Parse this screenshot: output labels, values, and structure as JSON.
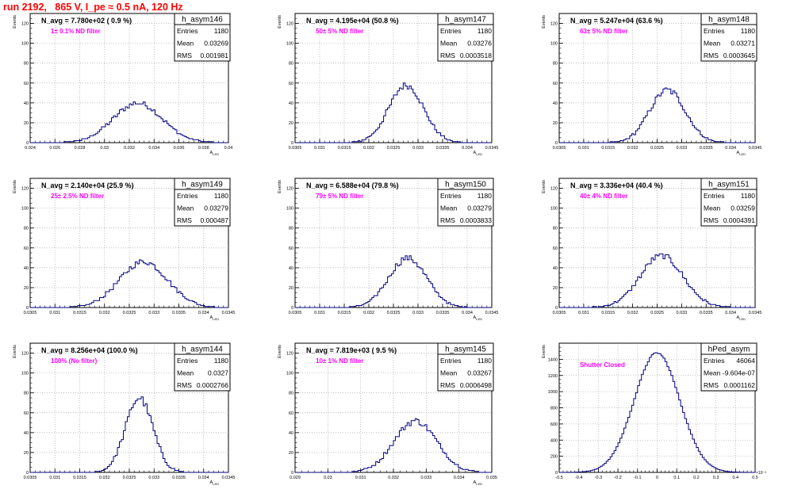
{
  "run_title": "run 2192,   865 V, I_pe ≈ 0.5 nA, 120 Hz",
  "colors": {
    "histogram": "#000080",
    "annotation_red": "#ff0000",
    "annotation_magenta": "#ff00ff",
    "grid": "#999999"
  },
  "chart_data": [
    {
      "type": "bar",
      "name": "h_asym146",
      "nav_label": "N_avg = 7.780e+02 ( 0.9 %)",
      "filter_label": "1± 0.1% ND filter",
      "ylabel": "Events",
      "xlabel": "A_LED",
      "stats": {
        "entries": "1180",
        "mean": "0.03269",
        "rms": "0.001981"
      },
      "xlim": [
        0.024,
        0.04
      ],
      "ylim": [
        0,
        130
      ],
      "xticks": [
        "0.024",
        "0.026",
        "0.028",
        "0.03",
        "0.032",
        "0.034",
        "0.036",
        "0.038",
        "0.04"
      ],
      "yticks": [
        "0",
        "20",
        "40",
        "60",
        "80",
        "100",
        "120"
      ],
      "mean": 0.03269,
      "rms": 0.001981,
      "peak": 40,
      "bins": 100
    },
    {
      "type": "bar",
      "name": "h_asym147",
      "nav_label": "N_avg = 4.195e+04 (50.8 %)",
      "filter_label": "50± 5% ND filter",
      "ylabel": "Events",
      "xlabel": "A_LED",
      "stats": {
        "entries": "1180",
        "mean": "0.03276",
        "rms": "0.0003518"
      },
      "xlim": [
        0.0305,
        0.0345
      ],
      "ylim": [
        0,
        130
      ],
      "xticks": [
        "0.0305",
        "0.031",
        "0.0315",
        "0.032",
        "0.0325",
        "0.033",
        "0.0335",
        "0.034",
        "0.0345"
      ],
      "yticks": [
        "0",
        "20",
        "40",
        "60",
        "80",
        "100",
        "120"
      ],
      "mean": 0.03276,
      "rms": 0.0003518,
      "peak": 58,
      "bins": 100
    },
    {
      "type": "bar",
      "name": "h_asym148",
      "nav_label": "N_avg = 5.247e+04 (63.6 %)",
      "filter_label": "63± 5% ND filter",
      "ylabel": "Events",
      "xlabel": "A_LED",
      "stats": {
        "entries": "1180",
        "mean": "0.03271",
        "rms": "0.0003645"
      },
      "xlim": [
        0.0305,
        0.0345
      ],
      "ylim": [
        0,
        130
      ],
      "xticks": [
        "0.0305",
        "0.031",
        "0.0315",
        "0.032",
        "0.0325",
        "0.033",
        "0.0335",
        "0.034",
        "0.0345"
      ],
      "yticks": [
        "0",
        "20",
        "40",
        "60",
        "80",
        "100",
        "120"
      ],
      "mean": 0.03271,
      "rms": 0.0003645,
      "peak": 53,
      "bins": 100
    },
    {
      "type": "bar",
      "name": "h_asym149",
      "nav_label": "N_avg = 2.140e+04 (25.9 %)",
      "filter_label": "25± 2.5% ND filter",
      "ylabel": "Events",
      "xlabel": "A_LED",
      "stats": {
        "entries": "1180",
        "mean": "0.03279",
        "rms": "0.000487"
      },
      "xlim": [
        0.0305,
        0.0345
      ],
      "ylim": [
        0,
        130
      ],
      "xticks": [
        "0.0305",
        "0.031",
        "0.0315",
        "0.032",
        "0.0325",
        "0.033",
        "0.0335",
        "0.034",
        "0.0345"
      ],
      "yticks": [
        "0",
        "20",
        "40",
        "60",
        "80",
        "100",
        "120"
      ],
      "mean": 0.03279,
      "rms": 0.000487,
      "peak": 46,
      "bins": 100
    },
    {
      "type": "bar",
      "name": "h_asym150",
      "nav_label": "N_avg = 6.588e+04 (79.8 %)",
      "filter_label": "79± 5% ND filter",
      "ylabel": "Events",
      "xlabel": "A_LED",
      "stats": {
        "entries": "1180",
        "mean": "0.03279",
        "rms": "0.0003833"
      },
      "xlim": [
        0.0305,
        0.0345
      ],
      "ylim": [
        0,
        130
      ],
      "xticks": [
        "0.0305",
        "0.031",
        "0.0315",
        "0.032",
        "0.0325",
        "0.033",
        "0.0335",
        "0.034",
        "0.0345"
      ],
      "yticks": [
        "0",
        "20",
        "40",
        "60",
        "80",
        "100",
        "120"
      ],
      "mean": 0.03279,
      "rms": 0.0003833,
      "peak": 50,
      "bins": 100
    },
    {
      "type": "bar",
      "name": "h_asym151",
      "nav_label": "N_avg = 3.336e+04 (40.4 %)",
      "filter_label": "40± 4% ND filter",
      "ylabel": "Events",
      "xlabel": "A_LED",
      "stats": {
        "entries": "1180",
        "mean": "0.03259",
        "rms": "0.0004391"
      },
      "xlim": [
        0.0305,
        0.0345
      ],
      "ylim": [
        0,
        130
      ],
      "xticks": [
        "0.0305",
        "0.031",
        "0.0315",
        "0.032",
        "0.0325",
        "0.033",
        "0.0335",
        "0.034",
        "0.0345"
      ],
      "yticks": [
        "0",
        "20",
        "40",
        "60",
        "80",
        "100",
        "120"
      ],
      "mean": 0.03259,
      "rms": 0.0004391,
      "peak": 52,
      "bins": 100
    },
    {
      "type": "bar",
      "name": "h_asym144",
      "nav_label": "N_avg = 8.256e+04 (100.0 %)",
      "filter_label": "100% (No filter)",
      "ylabel": "Events",
      "xlabel": "A_LED",
      "stats": {
        "entries": "1180",
        "mean": "0.0327",
        "rms": "0.0002766"
      },
      "xlim": [
        0.0305,
        0.0345
      ],
      "ylim": [
        0,
        130
      ],
      "xticks": [
        "0.0305",
        "0.031",
        "0.0315",
        "0.032",
        "0.0325",
        "0.033",
        "0.0335",
        "0.034",
        "0.0345"
      ],
      "yticks": [
        "0",
        "20",
        "40",
        "60",
        "80",
        "100",
        "120"
      ],
      "mean": 0.0327,
      "rms": 0.0002766,
      "peak": 75,
      "bins": 100
    },
    {
      "type": "bar",
      "name": "h_asym145",
      "nav_label": "N_avg = 7.819e+03 ( 9.5 %)",
      "filter_label": "10± 1% ND filter",
      "ylabel": "Events",
      "xlabel": "A_LED",
      "stats": {
        "entries": "1180",
        "mean": "0.03267",
        "rms": "0.0006498"
      },
      "xlim": [
        0.029,
        0.035
      ],
      "ylim": [
        0,
        130
      ],
      "xticks": [
        "0.029",
        "0.03",
        "0.031",
        "0.032",
        "0.033",
        "0.034",
        "0.035"
      ],
      "yticks": [
        "0",
        "20",
        "40",
        "60",
        "80",
        "100",
        "120"
      ],
      "mean": 0.03267,
      "rms": 0.0006498,
      "peak": 52,
      "bins": 100
    },
    {
      "type": "bar",
      "name": "hPed_asym",
      "nav_label": "",
      "filter_label": "Shutter Closed",
      "ylabel": "Events",
      "xlabel": "",
      "exponent_label": "×10⁻³",
      "stats": {
        "entries": "46064",
        "mean": "-9.604e-07",
        "rms": "0.0001162"
      },
      "xlim": [
        -0.5,
        0.5
      ],
      "ylim": [
        0,
        1600
      ],
      "xticks": [
        "-0.5",
        "-0.4",
        "-0.3",
        "-0.2",
        "-0.1",
        "0",
        "0.1",
        "0.2",
        "0.3",
        "0.4",
        "0.5"
      ],
      "yticks": [
        "0",
        "200",
        "400",
        "600",
        "800",
        "1000",
        "1200",
        "1400"
      ],
      "mean": -0.00096,
      "rms": 0.1162,
      "peak": 1480,
      "bins": 100
    }
  ]
}
